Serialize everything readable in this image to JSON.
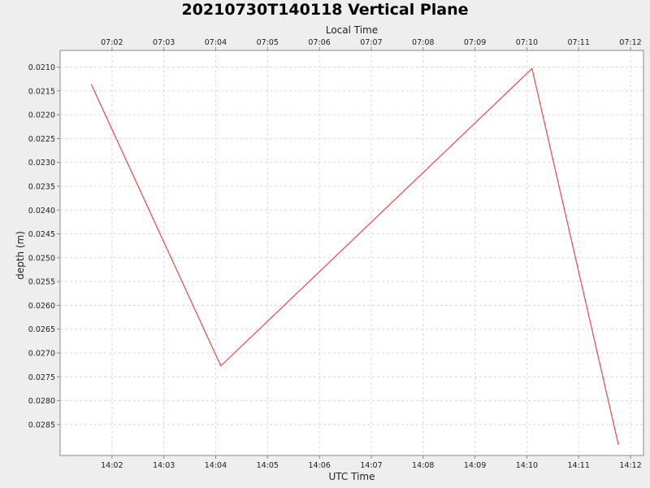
{
  "chart_data": {
    "type": "line",
    "title": "20210730T140118 Vertical Plane",
    "xlabel_bottom": "UTC Time",
    "xlabel_top": "Local Time",
    "ylabel": "depth (m)",
    "x_ticks_bottom": [
      "14:02",
      "14:03",
      "14:04",
      "14:05",
      "14:06",
      "14:07",
      "14:08",
      "14:09",
      "14:10",
      "14:11",
      "14:12"
    ],
    "x_ticks_top": [
      "07:02",
      "07:03",
      "07:04",
      "07:05",
      "07:06",
      "07:07",
      "07:08",
      "07:09",
      "07:10",
      "07:11",
      "07:12"
    ],
    "y_ticks": [
      "0.0210",
      "0.0215",
      "0.0220",
      "0.0225",
      "0.0230",
      "0.0235",
      "0.0240",
      "0.0245",
      "0.0250",
      "0.0255",
      "0.0260",
      "0.0265",
      "0.0270",
      "0.0275",
      "0.0280",
      "0.0285"
    ],
    "xlim_minutes_utc": [
      "14:01:00",
      "14:12:15"
    ],
    "ylim": [
      0.02065,
      0.02915
    ],
    "y_inverted": true,
    "grid": true,
    "series": [
      {
        "color": "#e8474a",
        "x": [
          "14:01:36",
          "14:04:06",
          "14:10:06",
          "14:11:46"
        ],
        "y": [
          0.02136,
          0.02727,
          0.02103,
          0.02893
        ]
      }
    ]
  }
}
